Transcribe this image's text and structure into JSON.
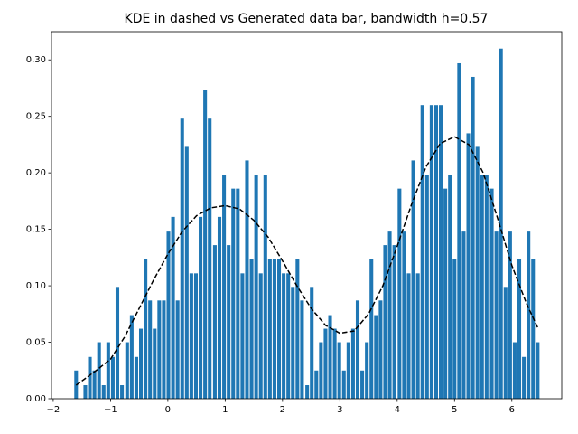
{
  "chart_data": {
    "type": "bar",
    "title": "KDE in dashed vs Generated data bar, bandwidth h=0.57",
    "x": [
      -1.6,
      -1.52,
      -1.44,
      -1.36,
      -1.28,
      -1.2,
      -1.12,
      -1.04,
      -0.96,
      -0.88,
      -0.8,
      -0.71,
      -0.63,
      -0.55,
      -0.47,
      -0.39,
      -0.31,
      -0.23,
      -0.15,
      -0.07,
      0.01,
      0.09,
      0.17,
      0.25,
      0.33,
      0.41,
      0.49,
      0.57,
      0.65,
      0.73,
      0.82,
      0.9,
      0.98,
      1.06,
      1.14,
      1.22,
      1.3,
      1.38,
      1.46,
      1.54,
      1.62,
      1.7,
      1.78,
      1.86,
      1.94,
      2.02,
      2.1,
      2.18,
      2.26,
      2.34,
      2.43,
      2.51,
      2.59,
      2.67,
      2.75,
      2.83,
      2.91,
      2.99,
      3.07,
      3.15,
      3.23,
      3.31,
      3.39,
      3.47,
      3.55,
      3.63,
      3.71,
      3.79,
      3.87,
      3.95,
      4.04,
      4.12,
      4.2,
      4.28,
      4.36,
      4.44,
      4.52,
      4.6,
      4.68,
      4.76,
      4.84,
      4.92,
      5.0,
      5.08,
      5.16,
      5.24,
      5.32,
      5.4,
      5.48,
      5.56,
      5.65,
      5.73,
      5.81,
      5.89,
      5.97,
      6.05,
      6.13,
      6.21,
      6.29,
      6.37,
      6.45
    ],
    "values": [
      0.025,
      0,
      0.012,
      0.037,
      0.025,
      0.05,
      0.012,
      0.05,
      0.037,
      0.099,
      0.012,
      0.05,
      0.074,
      0.037,
      0.062,
      0.124,
      0.087,
      0.062,
      0.087,
      0.087,
      0.148,
      0.161,
      0.087,
      0.248,
      0.223,
      0.111,
      0.111,
      0.161,
      0.273,
      0.248,
      0.136,
      0.161,
      0.198,
      0.136,
      0.186,
      0.186,
      0.111,
      0.211,
      0.124,
      0.198,
      0.111,
      0.198,
      0.124,
      0.124,
      0.124,
      0.111,
      0.111,
      0.099,
      0.124,
      0.087,
      0.012,
      0.099,
      0.025,
      0.05,
      0.062,
      0.074,
      0.062,
      0.05,
      0.025,
      0.05,
      0.062,
      0.087,
      0.025,
      0.05,
      0.124,
      0.074,
      0.087,
      0.136,
      0.148,
      0.136,
      0.186,
      0.148,
      0.111,
      0.211,
      0.111,
      0.26,
      0.198,
      0.26,
      0.26,
      0.26,
      0.186,
      0.198,
      0.124,
      0.297,
      0.148,
      0.235,
      0.285,
      0.223,
      0.198,
      0.198,
      0.186,
      0.148,
      0.31,
      0.099,
      0.148,
      0.05,
      0.124,
      0.037,
      0.148,
      0.124,
      0.05
    ],
    "color": "#1f77b4",
    "kde": {
      "color": "#000000",
      "style": "dashed",
      "x": [
        -1.6,
        -1.25,
        -1.0,
        -0.75,
        -0.5,
        -0.25,
        0,
        0.25,
        0.5,
        0.75,
        1.0,
        1.25,
        1.5,
        1.75,
        2.0,
        2.25,
        2.5,
        2.75,
        3.0,
        3.25,
        3.5,
        3.75,
        4.0,
        4.25,
        4.5,
        4.75,
        5.0,
        5.25,
        5.5,
        5.75,
        6.0,
        6.25,
        6.45
      ],
      "values": [
        0.012,
        0.025,
        0.035,
        0.055,
        0.08,
        0.105,
        0.128,
        0.148,
        0.162,
        0.169,
        0.171,
        0.168,
        0.158,
        0.143,
        0.122,
        0.1,
        0.08,
        0.065,
        0.058,
        0.06,
        0.075,
        0.1,
        0.135,
        0.172,
        0.205,
        0.226,
        0.232,
        0.225,
        0.2,
        0.16,
        0.118,
        0.085,
        0.063
      ]
    },
    "xlim": [
      -2.03,
      6.87
    ],
    "ylim": [
      0,
      0.325
    ],
    "xticks": [
      {
        "value": -2,
        "label": "−2"
      },
      {
        "value": -1,
        "label": "−1"
      },
      0,
      1,
      2,
      3,
      4,
      5,
      6
    ],
    "yticks": [
      {
        "value": 0,
        "label": "0.00"
      },
      0.05,
      {
        "value": 0.1,
        "label": "0.10"
      },
      0.15,
      {
        "value": 0.2,
        "label": "0.20"
      },
      0.25,
      {
        "value": 0.3,
        "label": "0.30"
      }
    ]
  }
}
